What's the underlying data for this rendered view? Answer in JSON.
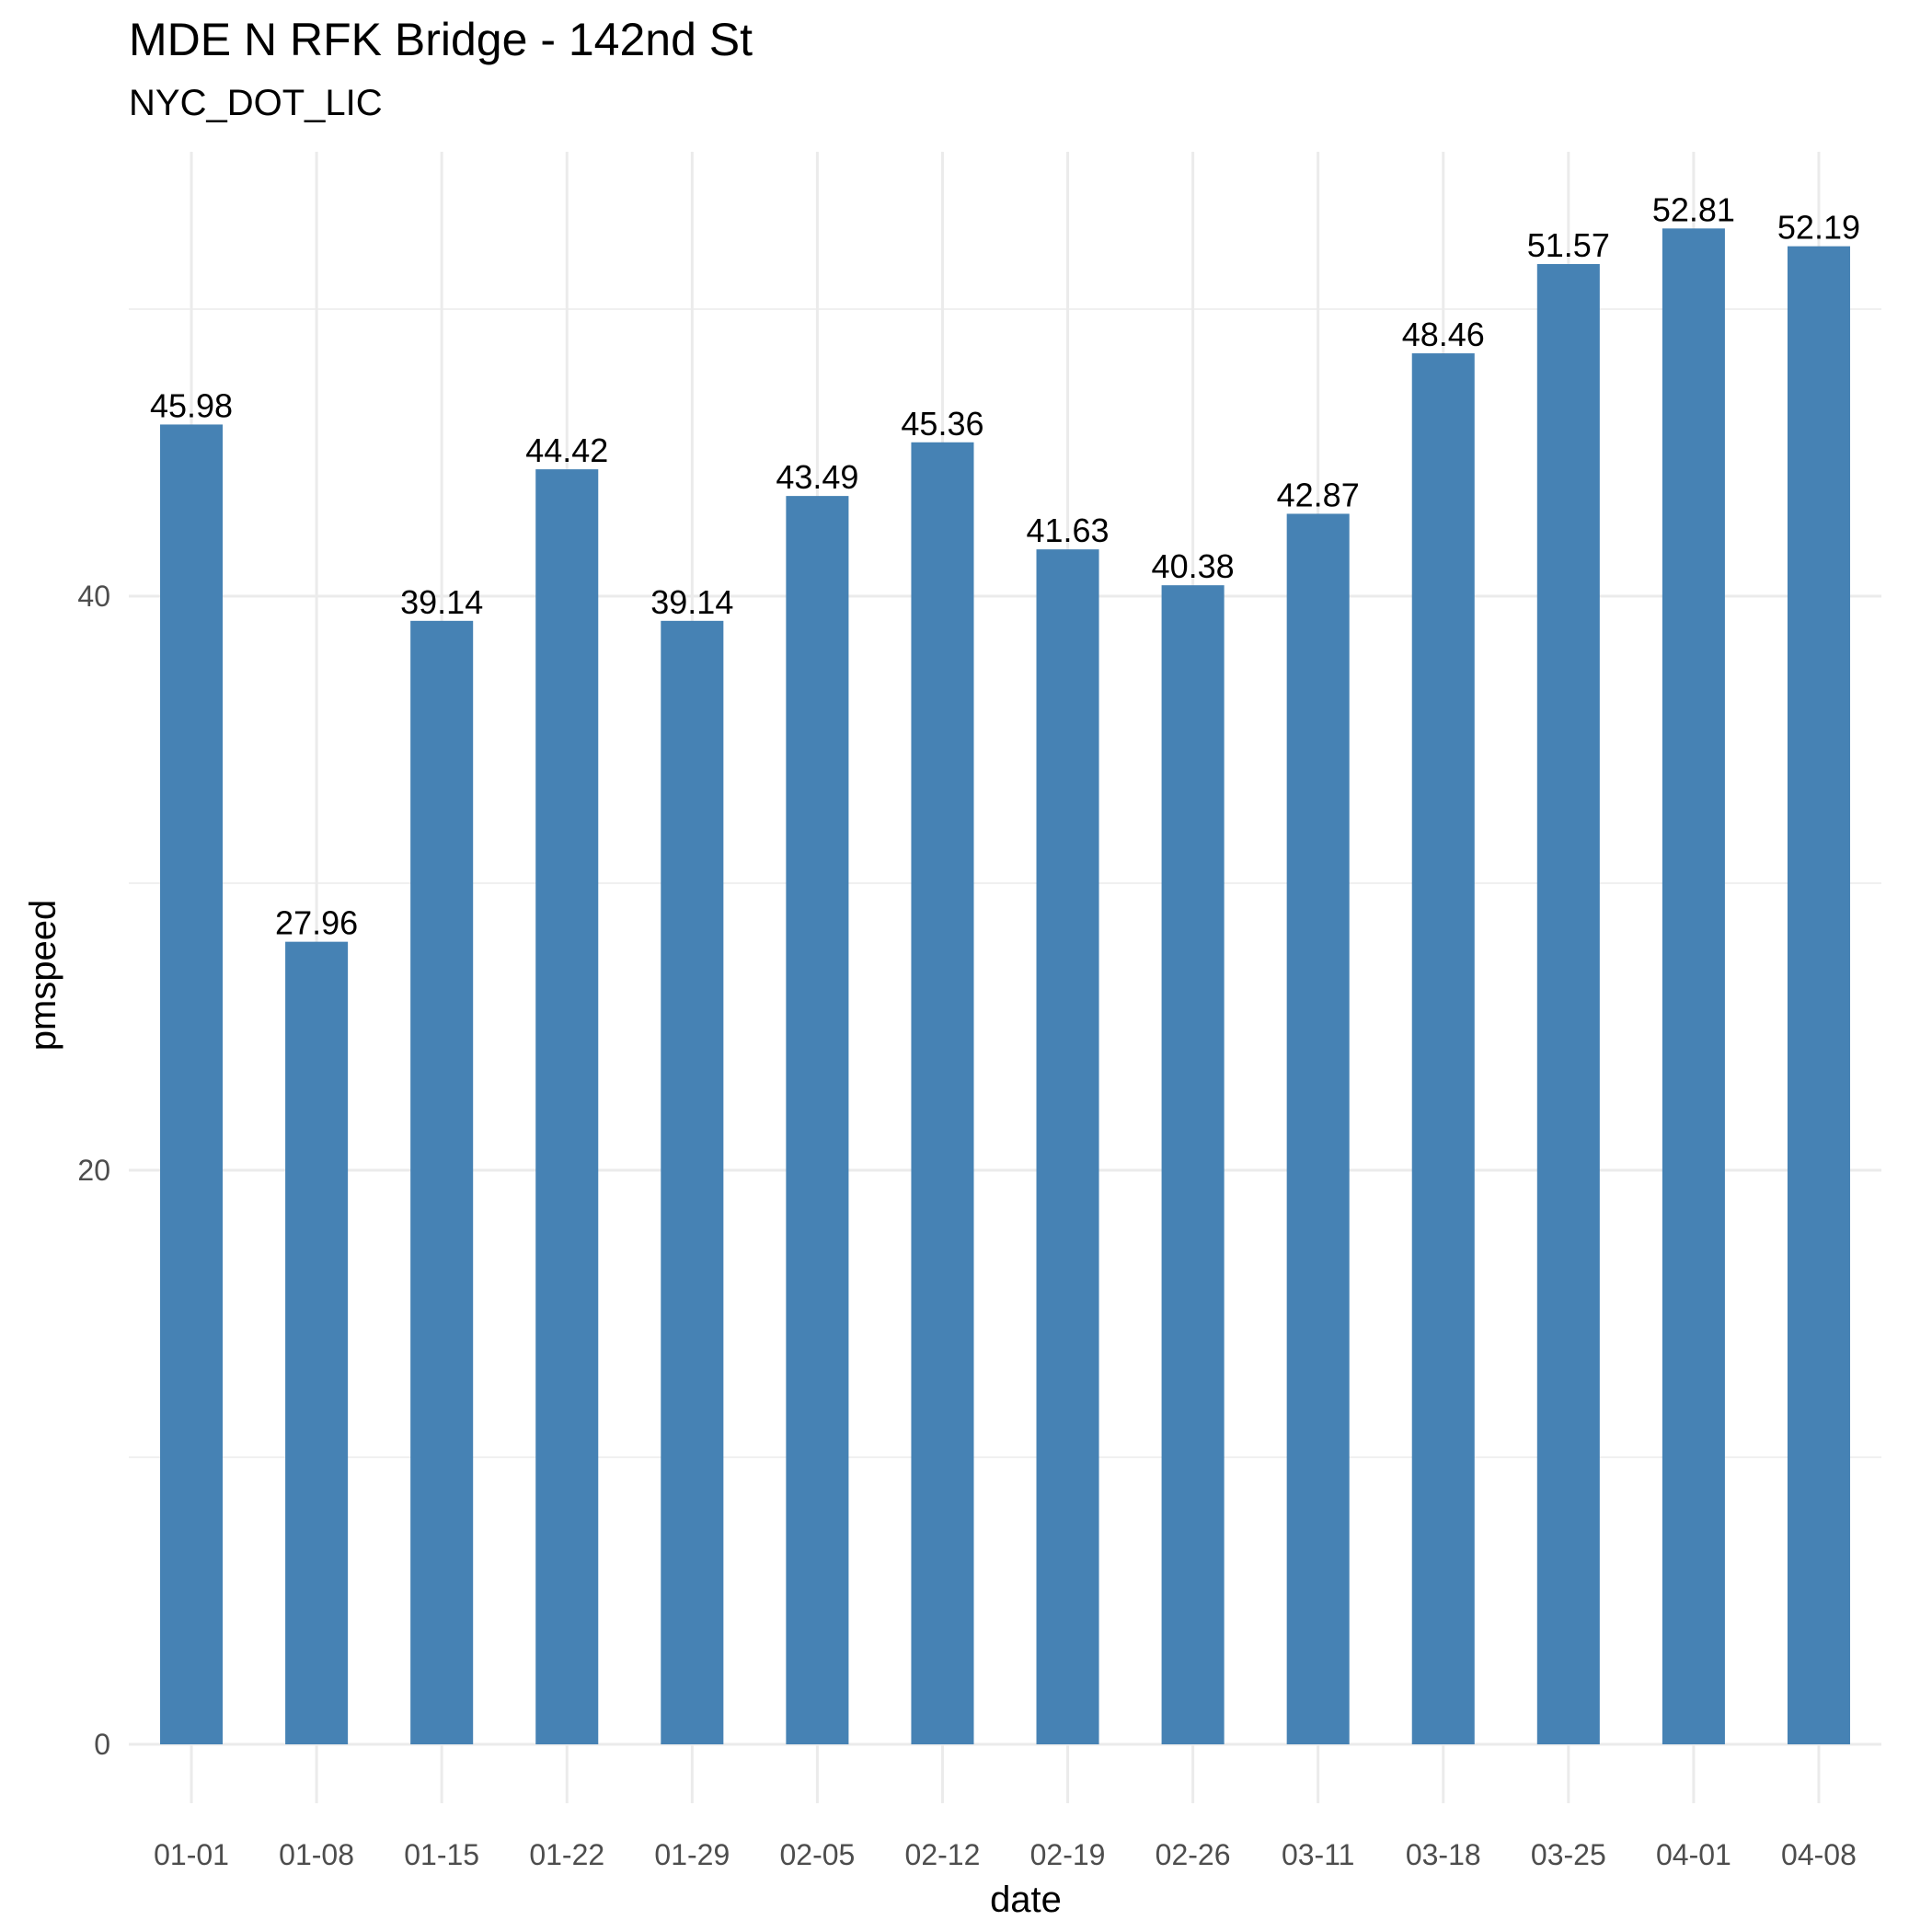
{
  "chart_data": {
    "type": "bar",
    "title": "MDE N RFK Bridge - 142nd St",
    "subtitle": "NYC_DOT_LIC",
    "xlabel": "date",
    "ylabel": "pmspeed",
    "categories": [
      "01-01",
      "01-08",
      "01-15",
      "01-22",
      "01-29",
      "02-05",
      "02-12",
      "02-19",
      "02-26",
      "03-11",
      "03-18",
      "03-25",
      "04-01",
      "04-08"
    ],
    "values": [
      45.98,
      27.96,
      39.14,
      44.42,
      39.14,
      43.49,
      45.36,
      41.63,
      40.38,
      42.87,
      48.46,
      51.57,
      52.81,
      52.19
    ],
    "data_labels": [
      "45.98",
      "27.96",
      "39.14",
      "44.42",
      "39.14",
      "43.49",
      "45.36",
      "41.63",
      "40.38",
      "42.87",
      "48.46",
      "51.57",
      "52.81",
      "52.19"
    ],
    "yticks": [
      0,
      20,
      40
    ],
    "ytick_labels": [
      "0",
      "20",
      "40"
    ],
    "ylim": [
      0,
      55.5
    ],
    "grid": true,
    "legend": "none",
    "bar_color": "#4682b4",
    "grid_color": "#ebebeb"
  }
}
